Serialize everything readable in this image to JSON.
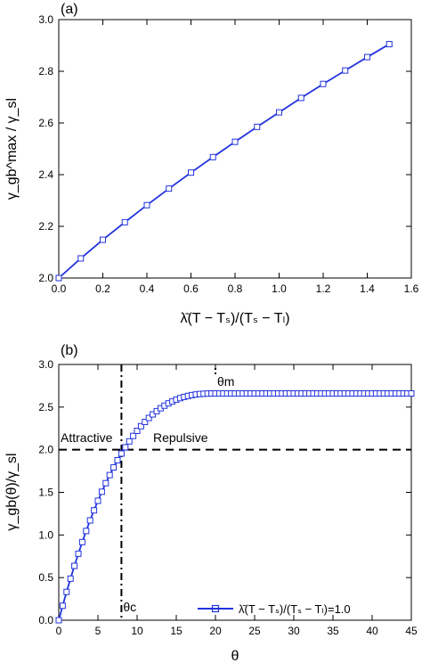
{
  "chart_data": [
    {
      "type": "line",
      "panel_label": "(a)",
      "xlabel": "λ̄(T − Tₛ)/(Tₛ − Tₗ)",
      "ylabel": "γ_gb^max / γ_sl",
      "xlim": [
        0.0,
        1.6
      ],
      "ylim": [
        2.0,
        3.0
      ],
      "x_ticks": [
        "0.0",
        "0.2",
        "0.4",
        "0.6",
        "0.8",
        "1.0",
        "1.2",
        "1.4",
        "1.6"
      ],
      "y_ticks": [
        "2.0",
        "2.2",
        "2.4",
        "2.6",
        "2.8",
        "3.0"
      ],
      "series": [
        {
          "color": "#2233dd",
          "marker": "square-open",
          "x": [
            0.0,
            0.1,
            0.2,
            0.3,
            0.4,
            0.5,
            0.6,
            0.7,
            0.8,
            0.9,
            1.0,
            1.1,
            1.2,
            1.3,
            1.4,
            1.5
          ],
          "y": [
            2.0,
            2.076,
            2.148,
            2.216,
            2.282,
            2.346,
            2.408,
            2.468,
            2.527,
            2.585,
            2.641,
            2.697,
            2.751,
            2.803,
            2.855,
            2.905
          ]
        }
      ]
    },
    {
      "type": "line",
      "panel_label": "(b)",
      "xlabel": "θ",
      "ylabel": "γ_gb(θ)/γ_sl",
      "xlim": [
        0,
        45
      ],
      "ylim": [
        0.0,
        3.0
      ],
      "x_ticks": [
        "0",
        "5",
        "10",
        "15",
        "20",
        "25",
        "30",
        "35",
        "40",
        "45"
      ],
      "y_ticks": [
        "0.0",
        "0.5",
        "1.0",
        "1.5",
        "2.0",
        "2.5",
        "3.0"
      ],
      "annotations": {
        "attractive": "Attractive",
        "repulsive": "Repulsive",
        "theta_c": "θc",
        "theta_m": "θm"
      },
      "reference_lines": {
        "horizontal_y": 2.0,
        "vertical_x": 8.0,
        "theta_m_x": 20.0
      },
      "series": [
        {
          "name": "λ̄(T − Tₛ)/(Tₛ − Tₗ)=1.0",
          "color": "#2233dd",
          "marker": "square-open",
          "peak": 2.66,
          "theta_m": 20,
          "step": 0.5
        }
      ]
    }
  ]
}
